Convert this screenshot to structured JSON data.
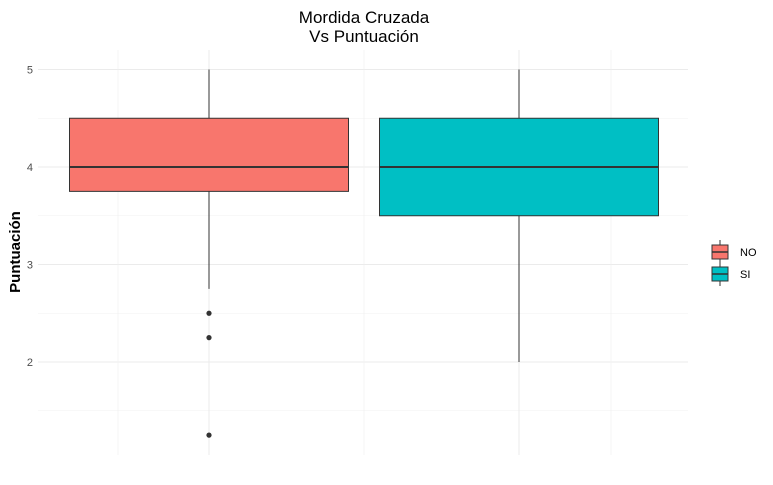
{
  "chart_data": {
    "type": "boxplot",
    "title_lines": [
      "Mordida Cruzada",
      "Vs Puntuación"
    ],
    "xlabel": "",
    "ylabel": "Puntuación",
    "y_ticks": [
      2,
      3,
      4,
      5
    ],
    "ylim": [
      1.1,
      5.3
    ],
    "grid": true,
    "legend_position": "right",
    "categories": [
      "NO",
      "SI"
    ],
    "boxes": [
      {
        "name": "NO",
        "color": "#F8766D",
        "whisker_low": 2.75,
        "q1": 3.75,
        "median": 4.0,
        "q3": 4.5,
        "whisker_high": 5.0,
        "outliers": [
          2.5,
          2.25,
          1.25
        ]
      },
      {
        "name": "SI",
        "color": "#00BFC4",
        "whisker_low": 2.0,
        "q1": 3.5,
        "median": 4.0,
        "q3": 4.5,
        "whisker_high": 5.0,
        "outliers": []
      }
    ]
  },
  "legend": {
    "items": [
      {
        "label": "NO",
        "color": "#F8766D"
      },
      {
        "label": "SI",
        "color": "#00BFC4"
      }
    ]
  }
}
